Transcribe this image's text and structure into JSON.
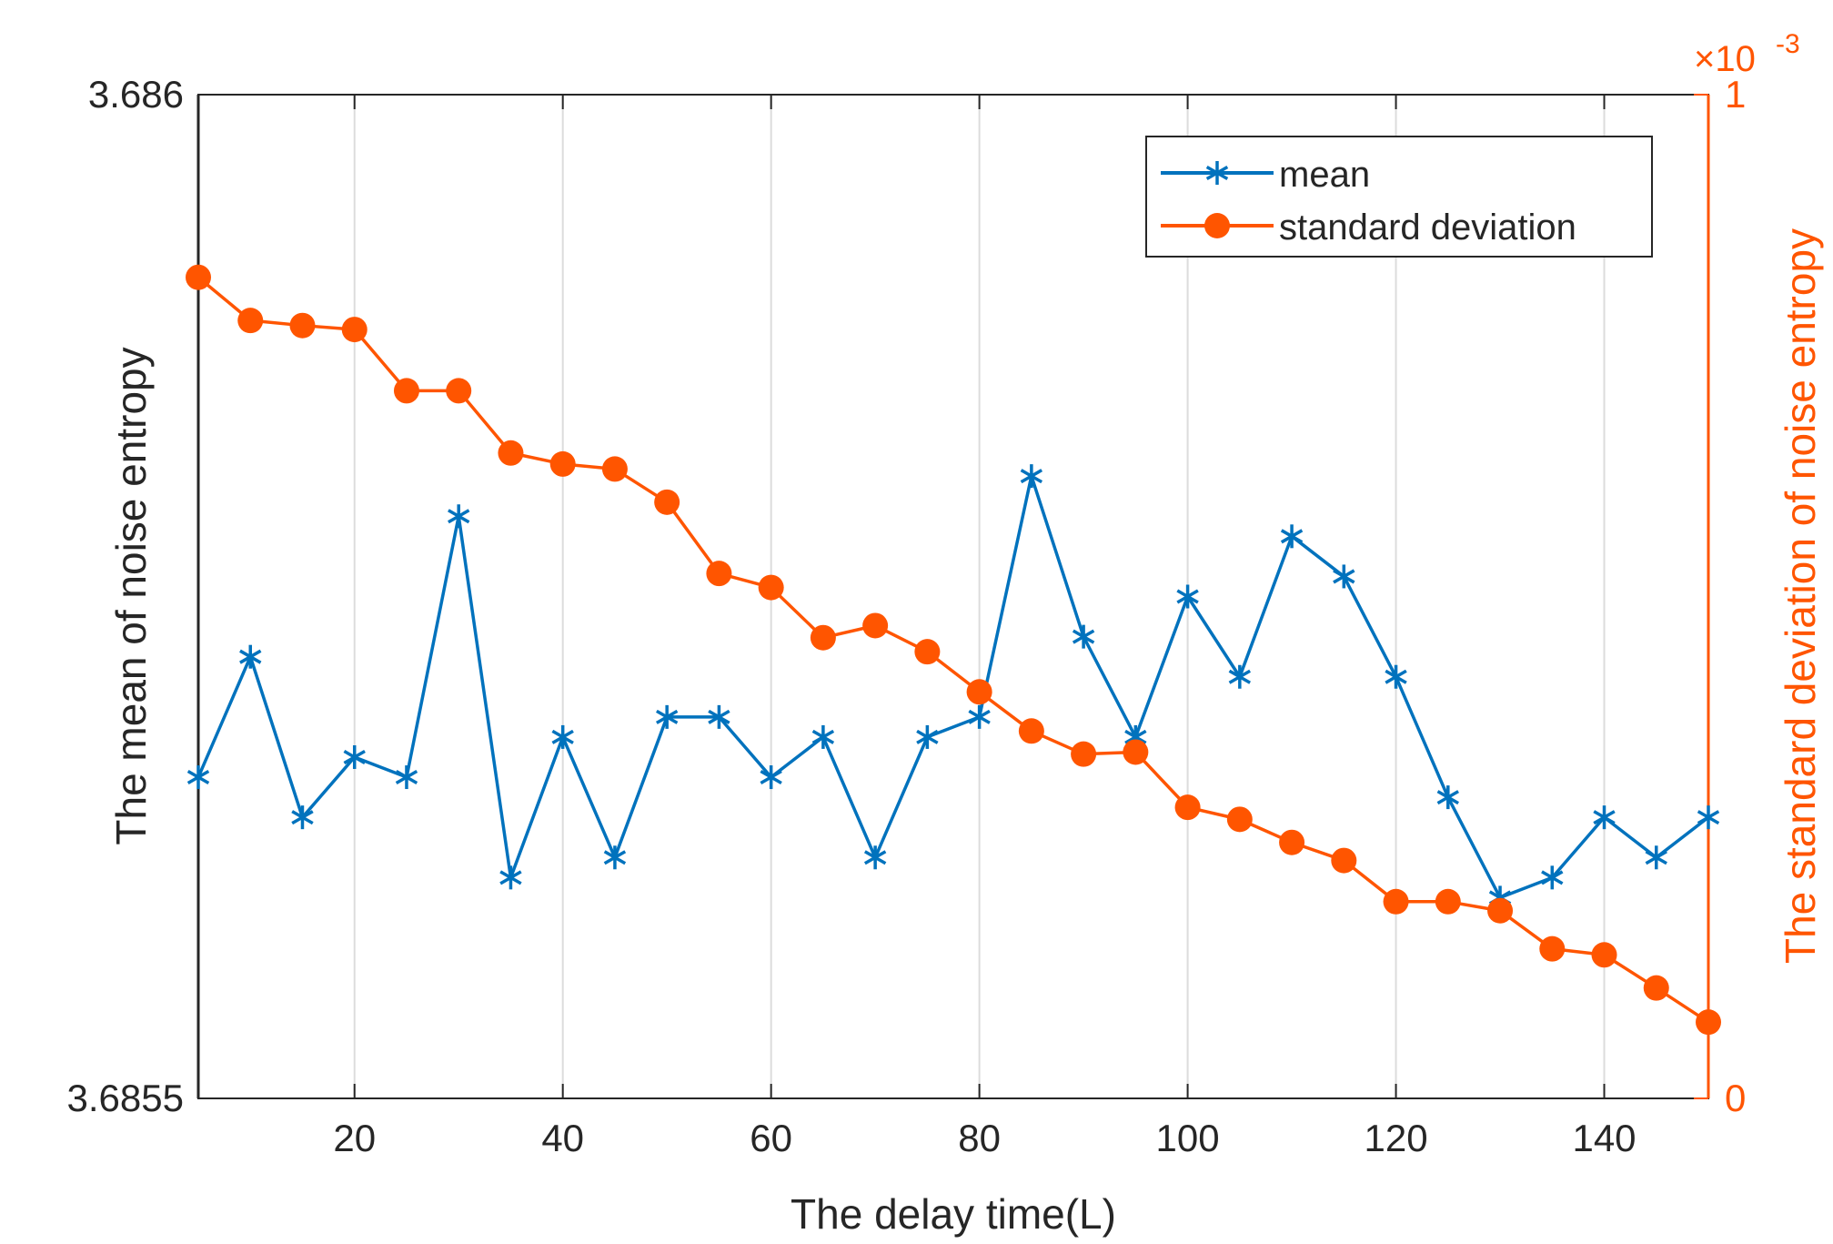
{
  "chart_data": {
    "type": "line",
    "title": "",
    "xlabel": "The delay time(L)",
    "ylabel_left": "The mean of noise entropy",
    "ylabel_right": "The standard deviation of noise entropy",
    "exponent_label": "×10",
    "exponent_power": "-3",
    "xlim": [
      5,
      150
    ],
    "ylim_left": [
      3.6855,
      3.686
    ],
    "ylim_right": [
      0,
      1
    ],
    "x_ticks": [
      20,
      40,
      60,
      80,
      100,
      120,
      140
    ],
    "x_tick_labels": [
      "20",
      "40",
      "60",
      "80",
      "100",
      "120",
      "140"
    ],
    "y_left_ticks": [
      3.6855,
      3.686
    ],
    "y_left_tick_labels": [
      "3.6855",
      "3.686"
    ],
    "y_right_ticks": [
      0,
      1
    ],
    "y_right_tick_labels": [
      "0",
      "1"
    ],
    "grid": "vertical",
    "legend_position": "top-right",
    "x": [
      5,
      10,
      15,
      20,
      25,
      30,
      35,
      40,
      45,
      50,
      55,
      60,
      65,
      70,
      75,
      80,
      85,
      90,
      95,
      100,
      105,
      110,
      115,
      120,
      125,
      130,
      135,
      140,
      145,
      150
    ],
    "series": [
      {
        "name": "mean",
        "axis": "left",
        "color": "#0072BD",
        "marker": "asterisk",
        "values": [
          3.68566,
          3.68572,
          3.68564,
          3.68567,
          3.68566,
          3.68579,
          3.68561,
          3.68568,
          3.68562,
          3.68569,
          3.68569,
          3.68566,
          3.68568,
          3.68562,
          3.68568,
          3.68569,
          3.68581,
          3.68573,
          3.68568,
          3.68575,
          3.68571,
          3.68578,
          3.68576,
          3.68571,
          3.68565,
          3.6856,
          3.68561,
          3.68564,
          3.68562,
          3.68564
        ]
      },
      {
        "name": "standard deviation",
        "axis": "right",
        "color": "#FF5500",
        "marker": "circle",
        "values": [
          0.818,
          0.775,
          0.77,
          0.766,
          0.705,
          0.705,
          0.643,
          0.632,
          0.627,
          0.594,
          0.523,
          0.509,
          0.459,
          0.471,
          0.445,
          0.405,
          0.366,
          0.343,
          0.345,
          0.29,
          0.278,
          0.255,
          0.237,
          0.196,
          0.196,
          0.187,
          0.149,
          0.143,
          0.11,
          0.076
        ]
      }
    ]
  }
}
